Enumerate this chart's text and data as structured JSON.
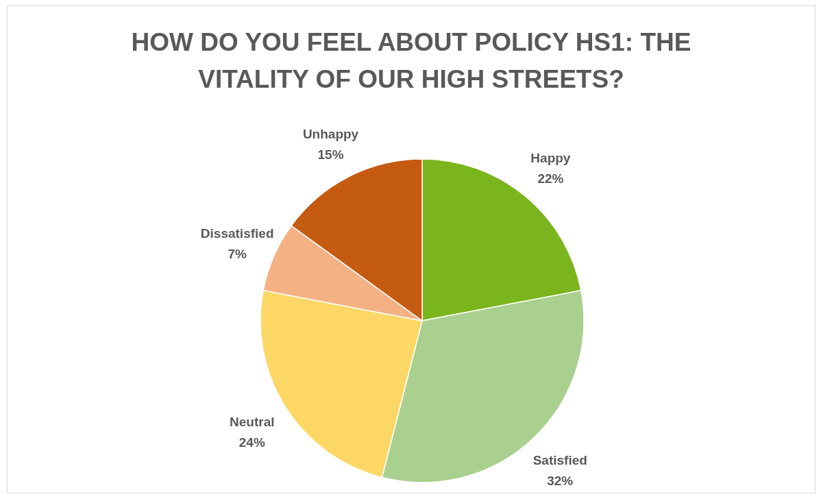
{
  "chart_data": {
    "type": "pie",
    "title": "HOW DO YOU FEEL ABOUT POLICY HS1: THE VITALITY OF OUR HIGH STREETS?",
    "categories": [
      "Happy",
      "Satisfied",
      "Neutral",
      "Dissatisfied",
      "Unhappy"
    ],
    "values": [
      22,
      32,
      24,
      7,
      15
    ],
    "value_labels": [
      "22%",
      "32%",
      "24%",
      "7%",
      "15%"
    ],
    "colors": [
      "#7ab51d",
      "#a9d08e",
      "#fdd766",
      "#f4b183",
      "#c55a11"
    ],
    "legend": false
  }
}
